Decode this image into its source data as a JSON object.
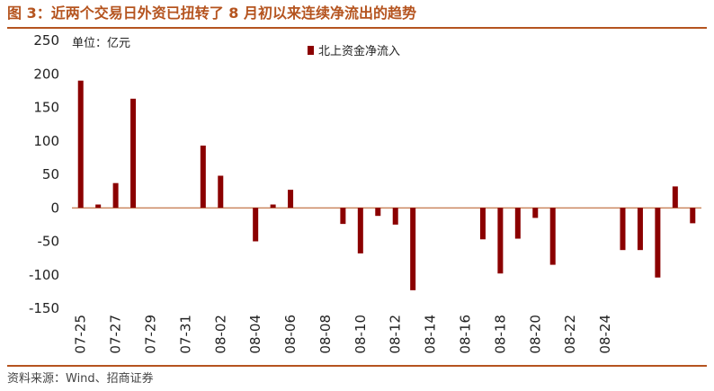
{
  "figure": {
    "title": "图 3：近两个交易日外资已扭转了 8 月初以来连续净流出的趋势",
    "source": "资料来源：Wind、招商证券"
  },
  "colors": {
    "accent": "#b5541f",
    "bar": "#8b0000",
    "axis": "#b5541f"
  },
  "chart_data": {
    "type": "bar",
    "unit_label": "单位：亿元",
    "series": [
      {
        "name": "北上资金净流入",
        "color": "#8b0000",
        "values": [
          190,
          5,
          37,
          163,
          null,
          null,
          null,
          93,
          48,
          null,
          -50,
          5,
          27,
          null,
          null,
          -24,
          -68,
          -12,
          -25,
          -123,
          null,
          null,
          null,
          -47,
          -98,
          -46,
          -15,
          -85,
          null,
          null,
          null,
          -63,
          -63,
          -104,
          32,
          -23
        ]
      }
    ],
    "categories": [
      "07-25",
      "07-26",
      "07-27",
      "07-28",
      "07-29",
      "07-30",
      "07-31",
      "08-01",
      "08-02",
      "08-03",
      "08-04",
      "08-05",
      "08-06",
      "08-07",
      "08-08",
      "08-09",
      "08-10",
      "08-11",
      "08-12",
      "08-13",
      "08-14",
      "08-15",
      "08-16",
      "08-17",
      "08-18",
      "08-19",
      "08-20",
      "08-21",
      "08-22",
      "08-23",
      "08-24",
      "08-25",
      "08-26",
      "08-27",
      "08-28",
      "08-29"
    ],
    "x_tick_labels": [
      "07-25",
      "07-27",
      "07-29",
      "07-31",
      "08-02",
      "08-04",
      "08-06",
      "08-08",
      "08-10",
      "08-12",
      "08-14",
      "08-16",
      "08-18",
      "08-20",
      "08-22",
      "08-24"
    ],
    "y_ticks": [
      250,
      200,
      150,
      100,
      50,
      0,
      -50,
      -100,
      -150
    ],
    "ylim": [
      -150,
      250
    ],
    "grid": false,
    "legend_position": "top-center"
  }
}
